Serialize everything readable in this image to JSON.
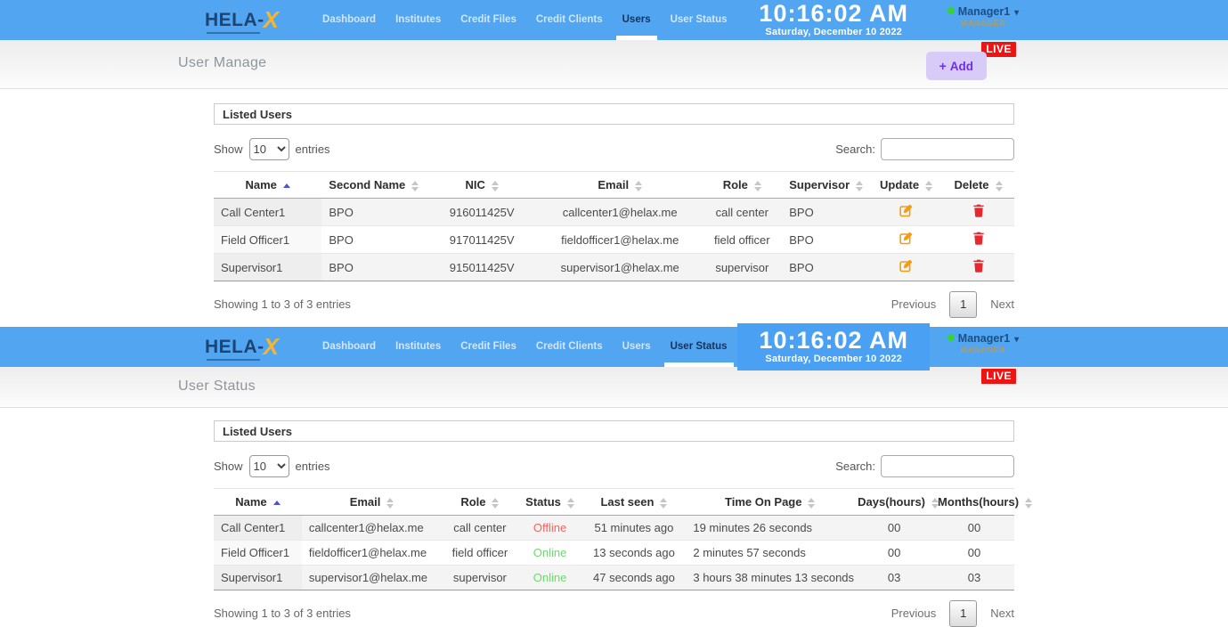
{
  "brand": {
    "logo_primary": "HELA-",
    "logo_accent": "X"
  },
  "header": {
    "nav_items": [
      "Dashboard",
      "Institutes",
      "Credit Files",
      "Credit Clients",
      "Users",
      "User Status"
    ],
    "clock": {
      "time": "10:16:02 AM",
      "date": "Saturday, December 10 2022"
    },
    "user": {
      "name": "Manager1",
      "role": "MANAGER",
      "presence": "online"
    },
    "live_badge": "LIVE"
  },
  "icons": {
    "plus": "+",
    "chevron_down": "▾"
  },
  "colors": {
    "header_blue": "#52a5f1",
    "logo_navy": "#1d4473",
    "logo_yellow": "#f6b52e",
    "live_red": "#ee1414",
    "add_purple": "#6d30ea",
    "add_bg": "#d9cbf8",
    "edit_orange": "#f39c12",
    "delete_red": "#e8282f",
    "online_green": "#6ed86e",
    "offline_red": "#f4645f",
    "sorted_arrow_blue": "#5153ce",
    "presence_green": "#35d435"
  },
  "user_manage": {
    "active_nav": "Users",
    "page_title": "User Manage",
    "add_button": {
      "label": "Add"
    },
    "panel_title": "Listed Users",
    "length_control": {
      "show_label": "Show",
      "selected": "10",
      "entries_label": "entries"
    },
    "search_label": "Search:",
    "table": {
      "columns": [
        {
          "label": "Name",
          "sorted": "asc"
        },
        {
          "label": "Second Name"
        },
        {
          "label": "NIC"
        },
        {
          "label": "Email"
        },
        {
          "label": "Role"
        },
        {
          "label": "Supervisor"
        },
        {
          "label": "Update",
          "icon": "edit-icon"
        },
        {
          "label": "Delete",
          "icon": "delete-icon"
        }
      ],
      "rows": [
        {
          "cells": [
            "Call Center1",
            "BPO",
            "916011425V",
            "callcenter1@helax.me",
            "call center",
            "BPO"
          ]
        },
        {
          "cells": [
            "Field Officer1",
            "BPO",
            "917011425V",
            "fieldofficer1@helax.me",
            "field officer",
            "BPO"
          ]
        },
        {
          "cells": [
            "Supervisor1",
            "BPO",
            "915011425V",
            "supervisor1@helax.me",
            "supervisor",
            "BPO"
          ]
        }
      ]
    },
    "summary": "Showing 1 to 3 of 3 entries",
    "pagination": {
      "previous": "Previous",
      "current_page": "1",
      "next": "Next"
    }
  },
  "user_status": {
    "active_nav": "User Status",
    "page_title": "User Status",
    "panel_title": "Listed Users",
    "length_control": {
      "show_label": "Show",
      "selected": "10",
      "entries_label": "entries"
    },
    "search_label": "Search:",
    "table": {
      "columns": [
        {
          "label": "Name",
          "sorted": "asc"
        },
        {
          "label": "Email"
        },
        {
          "label": "Role"
        },
        {
          "label": "Status",
          "status": true
        },
        {
          "label": "Last seen"
        },
        {
          "label": "Time On Page"
        },
        {
          "label": "Days(hours)"
        },
        {
          "label": "Months(hours)"
        }
      ],
      "rows": [
        {
          "cells": [
            "Call Center1",
            "callcenter1@helax.me",
            "call center",
            "Offline",
            "51 minutes ago",
            "19 minutes 26 seconds",
            "00",
            "00"
          ]
        },
        {
          "cells": [
            "Field Officer1",
            "fieldofficer1@helax.me",
            "field officer",
            "Online",
            "13 seconds ago",
            "2 minutes 57 seconds",
            "00",
            "00"
          ]
        },
        {
          "cells": [
            "Supervisor1",
            "supervisor1@helax.me",
            "supervisor",
            "Online",
            "47 seconds ago",
            "3 hours 38 minutes 13 seconds",
            "03",
            "03"
          ]
        }
      ]
    },
    "summary": "Showing 1 to 3 of 3 entries",
    "pagination": {
      "previous": "Previous",
      "current_page": "1",
      "next": "Next"
    }
  }
}
